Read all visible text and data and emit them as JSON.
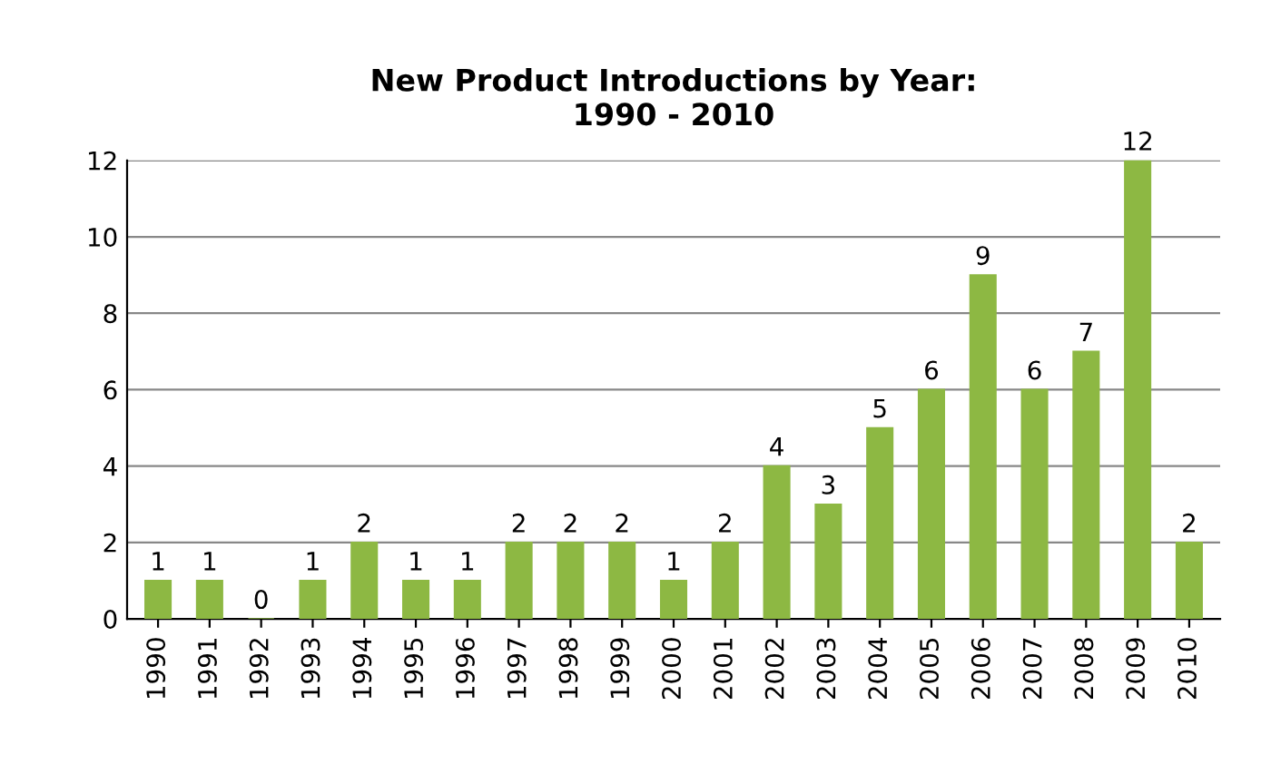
{
  "chart_data": {
    "type": "bar",
    "title": "New Product Introductions by Year:\n1990 - 2010",
    "categories": [
      "1990",
      "1991",
      "1992",
      "1993",
      "1994",
      "1995",
      "1996",
      "1997",
      "1998",
      "1999",
      "2000",
      "2001",
      "2002",
      "2003",
      "2004",
      "2005",
      "2006",
      "2007",
      "2008",
      "2009",
      "2010"
    ],
    "values": [
      1,
      1,
      0,
      1,
      2,
      1,
      1,
      2,
      2,
      2,
      1,
      2,
      4,
      3,
      5,
      6,
      9,
      6,
      7,
      12,
      2
    ],
    "color": "#8db843",
    "ylim": [
      0,
      12
    ],
    "yticks": [
      0,
      2,
      4,
      6,
      8,
      10,
      12
    ],
    "grid": "y",
    "data_labels": true,
    "legend": false
  }
}
